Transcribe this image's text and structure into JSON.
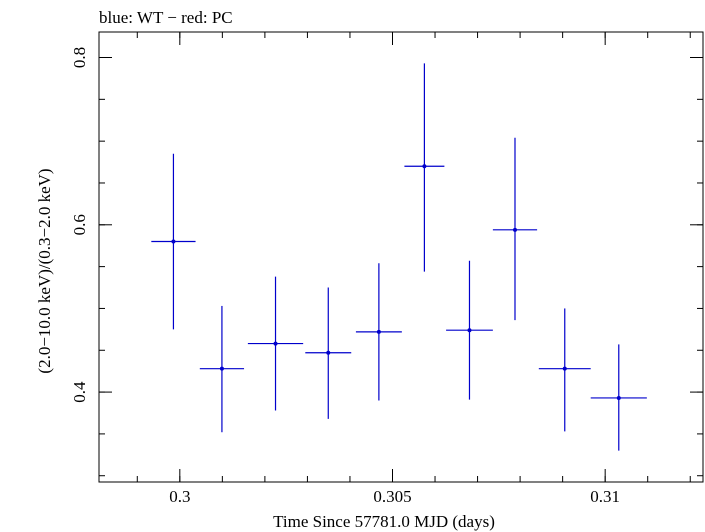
{
  "chart_data": {
    "type": "scatter",
    "title": "blue: WT − red: PC",
    "xlabel": "Time Since 57781.0 MJD (days)",
    "ylabel": "(2.0−10.0 keV)/(0.3−2.0 keV)",
    "xlim": [
      0.2981,
      0.3123
    ],
    "ylim": [
      0.2925,
      0.8305
    ],
    "x_ticks": [
      {
        "value": 0.3,
        "label": "0.3"
      },
      {
        "value": 0.305,
        "label": "0.305"
      },
      {
        "value": 0.31,
        "label": "0.31"
      }
    ],
    "x_minor_step": 0.001,
    "y_ticks": [
      {
        "value": 0.4,
        "label": "0.4"
      },
      {
        "value": 0.6,
        "label": "0.6"
      },
      {
        "value": 0.8,
        "label": "0.8"
      }
    ],
    "y_minor_step": 0.05,
    "grid": false,
    "series": [
      {
        "color": "#0000cc",
        "points": [
          {
            "x": 0.29985,
            "y": 0.58,
            "xerr": 0.00052,
            "ylo": 0.475,
            "yhi": 0.685
          },
          {
            "x": 0.30099,
            "y": 0.428,
            "xerr": 0.00052,
            "ylo": 0.352,
            "yhi": 0.503
          },
          {
            "x": 0.30225,
            "y": 0.458,
            "xerr": 0.00065,
            "ylo": 0.378,
            "yhi": 0.538
          },
          {
            "x": 0.30349,
            "y": 0.447,
            "xerr": 0.00054,
            "ylo": 0.368,
            "yhi": 0.525
          },
          {
            "x": 0.30468,
            "y": 0.472,
            "xerr": 0.00054,
            "ylo": 0.39,
            "yhi": 0.554
          },
          {
            "x": 0.30575,
            "y": 0.67,
            "xerr": 0.00047,
            "ylo": 0.544,
            "yhi": 0.793
          },
          {
            "x": 0.30681,
            "y": 0.474,
            "xerr": 0.00055,
            "ylo": 0.391,
            "yhi": 0.557
          },
          {
            "x": 0.30788,
            "y": 0.594,
            "xerr": 0.00052,
            "ylo": 0.486,
            "yhi": 0.704
          },
          {
            "x": 0.30905,
            "y": 0.428,
            "xerr": 0.00061,
            "ylo": 0.353,
            "yhi": 0.5
          },
          {
            "x": 0.31032,
            "y": 0.393,
            "xerr": 0.00066,
            "ylo": 0.33,
            "yhi": 0.457
          }
        ]
      }
    ]
  }
}
